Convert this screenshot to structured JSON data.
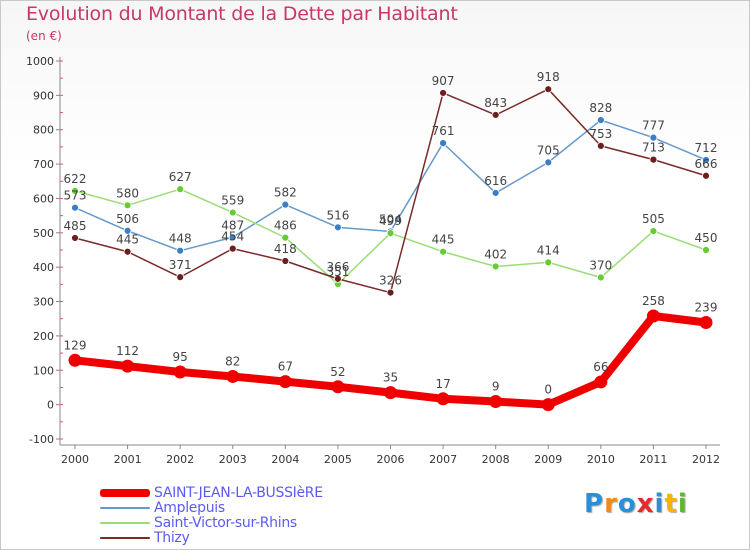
{
  "title": "Evolution du Montant de la Dette par Habitant",
  "subtitle": "(en €)",
  "logo": {
    "letters": [
      "P",
      "r",
      "o",
      "x",
      "i",
      "t",
      "i"
    ],
    "colors": [
      "#2a8fd8",
      "#f08a1c",
      "#2a8fd8",
      "#e8282b",
      "#2a8fd8",
      "#f5b400",
      "#5cb82e"
    ]
  },
  "chart_data": {
    "type": "line",
    "x": [
      "2000",
      "2001",
      "2002",
      "2003",
      "2004",
      "2005",
      "2006",
      "2007",
      "2008",
      "2009",
      "2010",
      "2011",
      "2012"
    ],
    "ylim": [
      -100,
      1000
    ],
    "yticks": [
      -100,
      0,
      100,
      200,
      300,
      400,
      500,
      600,
      700,
      800,
      900,
      1000
    ],
    "grid": false,
    "legend_position": "bottom-left",
    "series": [
      {
        "name": "SAINT-JEAN-LA-BUSSIèRE",
        "color": "#ee0000",
        "width": 8,
        "values": [
          129,
          112,
          95,
          82,
          67,
          52,
          35,
          17,
          9,
          0,
          66,
          258,
          239
        ]
      },
      {
        "name": "Amplepuis",
        "color": "#6699cc",
        "width": 1.5,
        "marker": "#3a7ec4",
        "values": [
          573,
          506,
          448,
          487,
          582,
          516,
          504,
          761,
          616,
          705,
          828,
          777,
          712
        ]
      },
      {
        "name": "Saint-Victor-sur-Rhins",
        "color": "#99dd77",
        "width": 1.5,
        "marker": "#66cc33",
        "values": [
          622,
          580,
          627,
          559,
          486,
          351,
          499,
          445,
          402,
          414,
          370,
          505,
          450
        ]
      },
      {
        "name": "Thizy",
        "color": "#7a2a2a",
        "width": 1.5,
        "marker": "#6b1f1f",
        "values": [
          485,
          445,
          371,
          454,
          418,
          366,
          326,
          907,
          843,
          918,
          753,
          713,
          666
        ]
      }
    ]
  }
}
